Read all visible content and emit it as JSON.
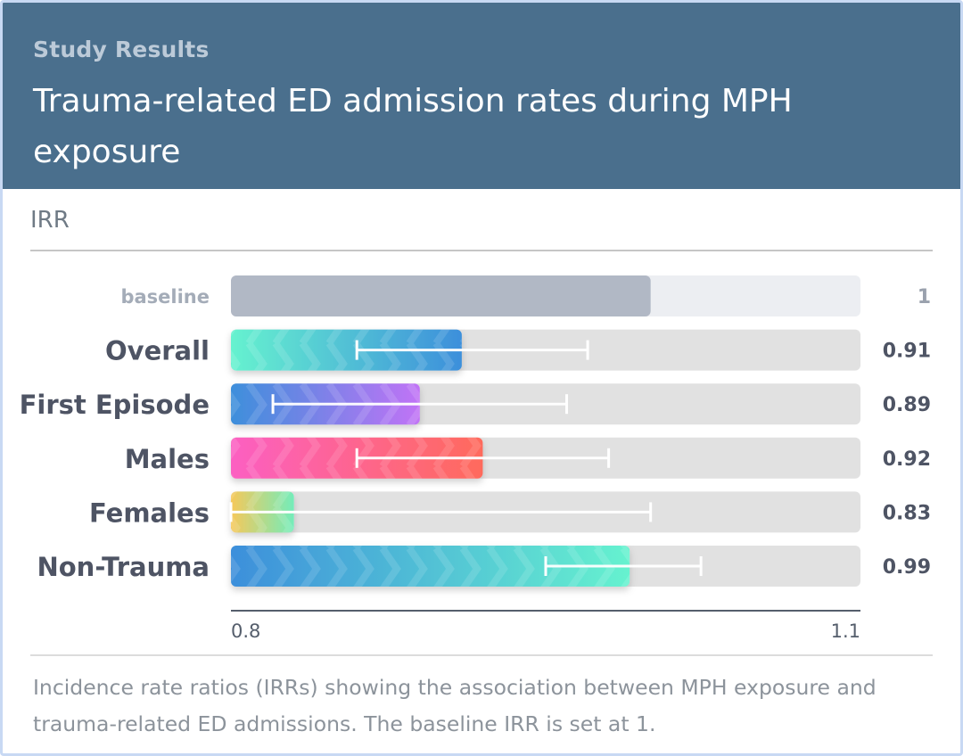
{
  "header": {
    "eyebrow": "Study Results",
    "title": "Trauma-related ED admission rates during MPH exposure"
  },
  "metric_label": "IRR",
  "caption": "Incidence rate ratios (IRRs) showing the association between MPH exposure and trauma-related ED admissions. The baseline IRR is set at 1.",
  "chart_data": {
    "type": "bar",
    "orientation": "horizontal",
    "title": "",
    "xlabel": "",
    "ylabel": "",
    "xlim": [
      0.8,
      1.1
    ],
    "x_tick_labels": [
      "0.8",
      "1.1"
    ],
    "categories": [
      "baseline",
      "Overall",
      "First Episode",
      "Males",
      "Females",
      "Non-Trauma"
    ],
    "values": [
      1,
      0.91,
      0.89,
      0.92,
      0.83,
      0.99
    ],
    "value_labels": [
      "1",
      "0.91",
      "0.89",
      "0.92",
      "0.83",
      "0.99"
    ],
    "ci_low": [
      null,
      0.86,
      0.82,
      0.86,
      0.8,
      0.95
    ],
    "ci_high": [
      null,
      0.97,
      0.96,
      0.98,
      1.0,
      1.024
    ],
    "colors": [
      [
        "#b1b8c5",
        "#b1b8c5"
      ],
      [
        "#66f2cf",
        "#3d8fdb"
      ],
      [
        "#3d8fdb",
        "#c173f6"
      ],
      [
        "#fc60c2",
        "#ff6a5c"
      ],
      [
        "#f6c85a",
        "#74ecba"
      ],
      [
        "#3d8fdb",
        "#66f2cf"
      ]
    ],
    "grid": false,
    "legend": "none"
  }
}
